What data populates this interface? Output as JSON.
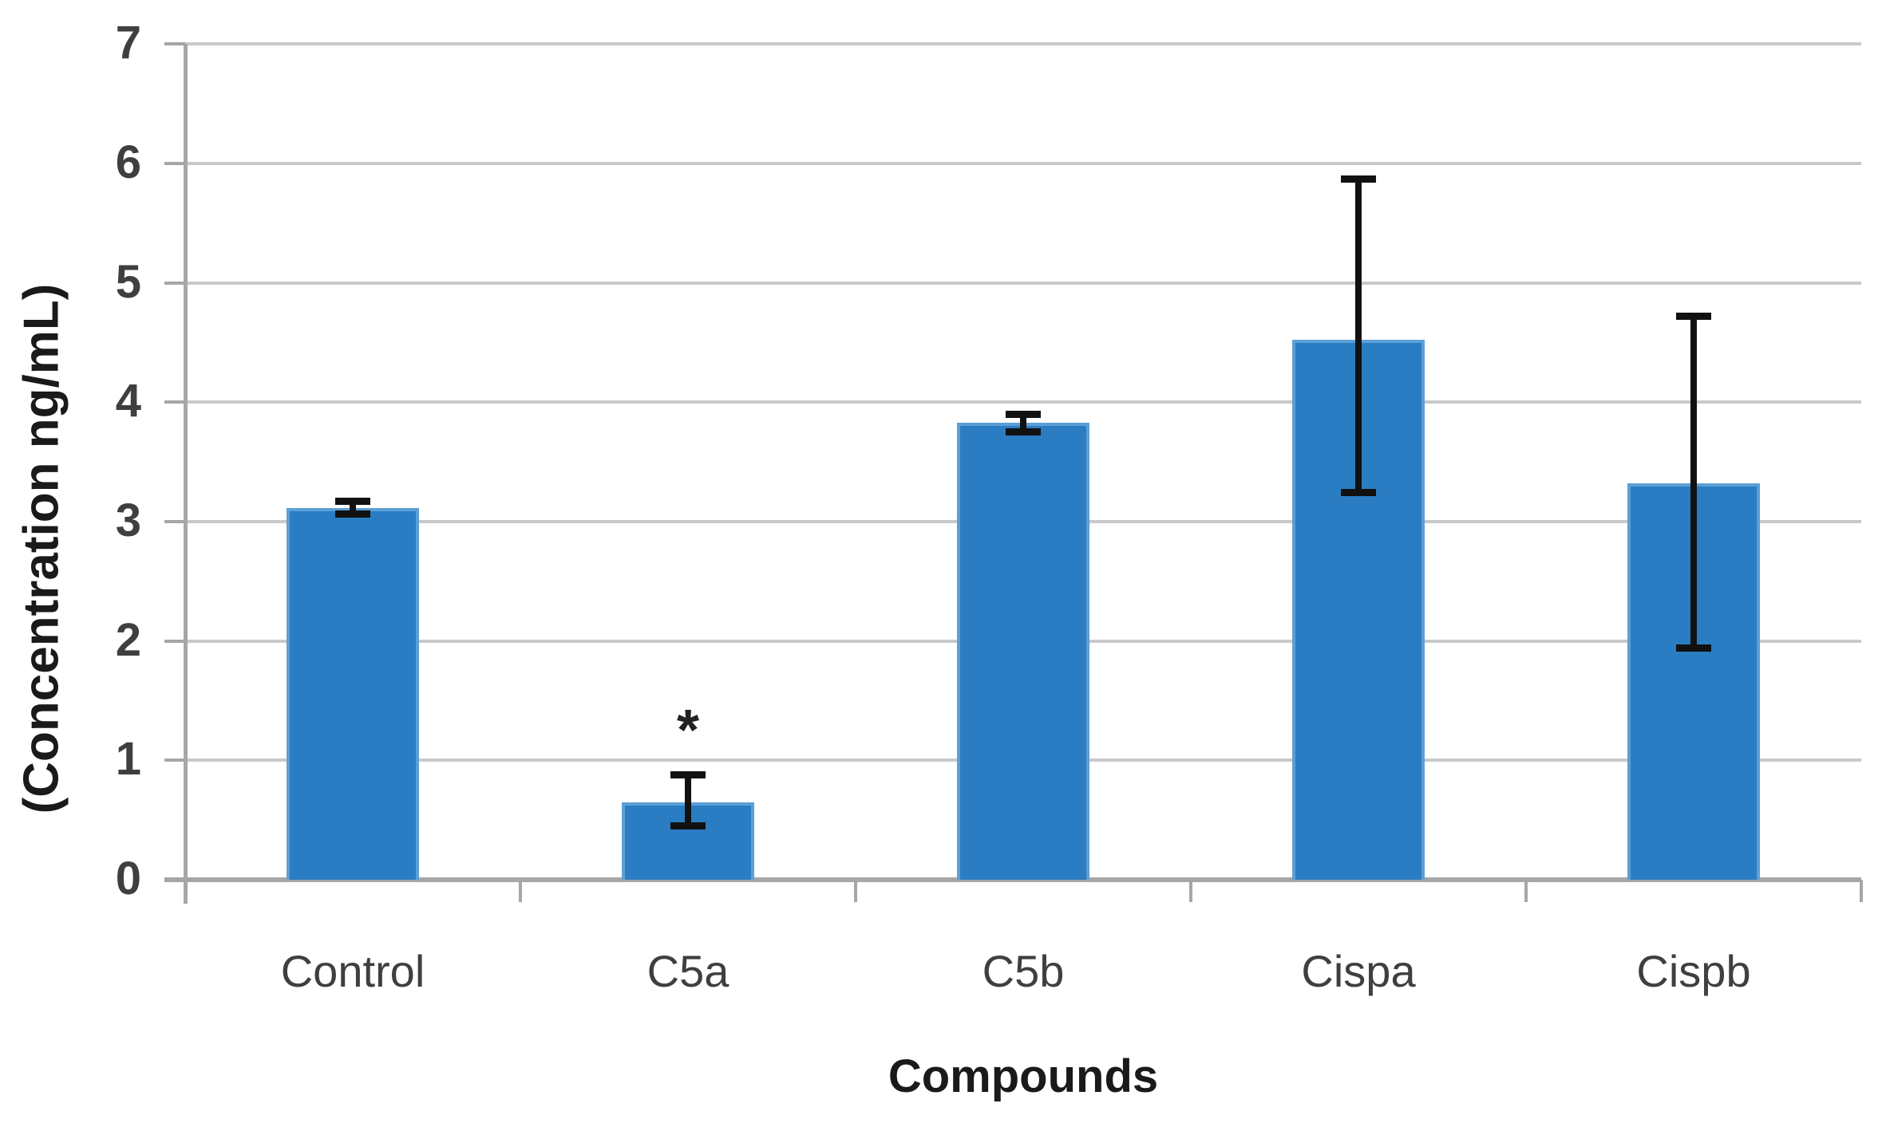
{
  "chart_data": {
    "type": "bar",
    "title": "",
    "xlabel": "Compounds",
    "ylabel": "(Concentration ng/mL)",
    "categories": [
      "Control",
      "C5a",
      "C5b",
      "Cispa",
      "Cispb"
    ],
    "values": [
      3.11,
      0.65,
      3.83,
      4.52,
      3.32
    ],
    "error_plus": [
      0.08,
      0.25,
      0.09,
      1.37,
      1.42
    ],
    "error_minus": [
      0.07,
      0.22,
      0.1,
      1.3,
      1.4
    ],
    "annotations": [
      {
        "category": "C5a",
        "text": "*",
        "meaning": "significance-marker"
      }
    ],
    "ylim": [
      0,
      7
    ],
    "yticks": [
      0,
      1,
      2,
      3,
      4,
      5,
      6,
      7
    ],
    "grid": "horizontal",
    "legend": "none",
    "colors": {
      "bar_fill": "#2B7DC3",
      "bar_edge": "#5C9FD6",
      "gridline": "#C9C9C9",
      "axis": "#A6A6A6",
      "error_bar": "#111111",
      "tick_label": "#3F3F3F",
      "axis_title": "#1A1A1A",
      "annotation": "#222222",
      "background": "#FFFFFF"
    }
  }
}
